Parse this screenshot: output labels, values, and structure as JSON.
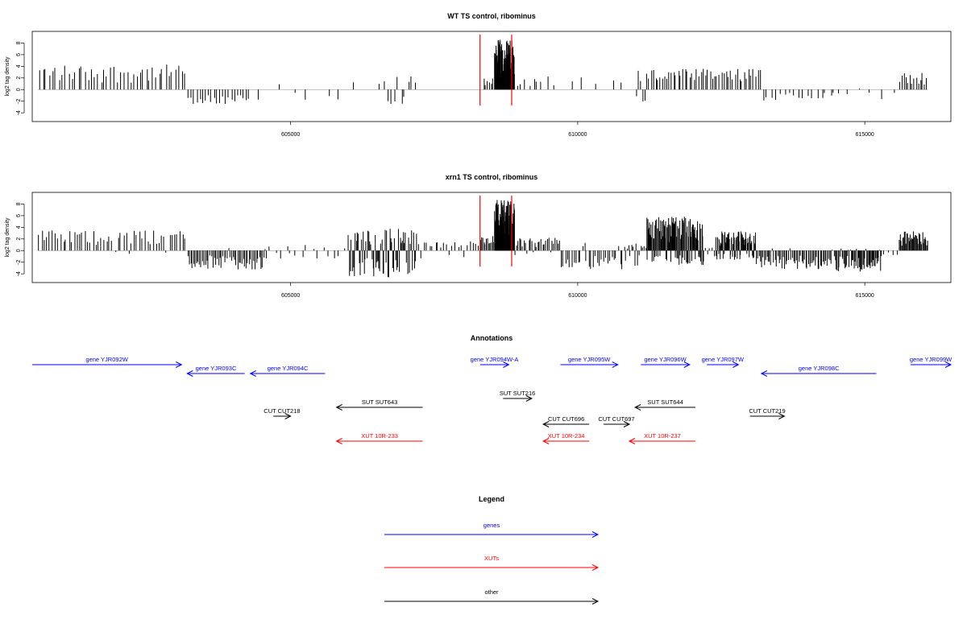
{
  "chart_data": [
    {
      "type": "bar",
      "title": "WT TS control, ribominus",
      "ylabel": "log2 tag density",
      "ylim": [
        -5.5,
        10
      ],
      "yticks": [
        -4,
        -2,
        0,
        2,
        4,
        6,
        8
      ],
      "xlim": [
        600500,
        616500
      ],
      "xticks": [
        605000,
        610000,
        615000
      ],
      "marker_lines": [
        608300,
        608850
      ],
      "marker_color": "#ff0000",
      "segments": [
        {
          "start": 600600,
          "end": 603200,
          "n": 46,
          "pos_max": 4.3,
          "neg_max": 0,
          "neg_frac": 0
        },
        {
          "start": 603200,
          "end": 604300,
          "n": 22,
          "pos_max": 0,
          "neg_max": 2.5,
          "neg_frac": 1
        },
        {
          "start": 604300,
          "end": 606600,
          "n": 8,
          "pos_max": 1.5,
          "neg_max": 1.8,
          "neg_frac": 0.55
        },
        {
          "start": 606600,
          "end": 607200,
          "n": 10,
          "pos_max": 2.6,
          "neg_max": 2.6,
          "neg_frac": 0.6
        },
        {
          "start": 608350,
          "end": 608550,
          "n": 6,
          "pos_max": 2.2,
          "neg_max": 0,
          "neg_frac": 0
        },
        {
          "start": 608550,
          "end": 608900,
          "n": 70,
          "pos_max": 8.6,
          "neg_max": 0,
          "neg_frac": 0
        },
        {
          "start": 608900,
          "end": 609500,
          "n": 8,
          "pos_max": 2.4,
          "neg_max": 0,
          "neg_frac": 0
        },
        {
          "start": 609500,
          "end": 611000,
          "n": 6,
          "pos_max": 2.2,
          "neg_max": 0,
          "neg_frac": 0
        },
        {
          "start": 611000,
          "end": 611300,
          "n": 8,
          "pos_max": 3.6,
          "neg_max": 2.6,
          "neg_frac": 0.4
        },
        {
          "start": 611300,
          "end": 613200,
          "n": 48,
          "pos_max": 3.6,
          "neg_max": 0,
          "neg_frac": 0
        },
        {
          "start": 613200,
          "end": 614600,
          "n": 18,
          "pos_max": 0,
          "neg_max": 2.0,
          "neg_frac": 1
        },
        {
          "start": 614600,
          "end": 615600,
          "n": 5,
          "pos_max": 0.5,
          "neg_max": 1.8,
          "neg_frac": 0.8
        },
        {
          "start": 615600,
          "end": 616100,
          "n": 14,
          "pos_max": 3.0,
          "neg_max": 0,
          "neg_frac": 0
        }
      ]
    },
    {
      "type": "bar",
      "title": "xrn1 TS control, ribominus",
      "ylabel": "log2 tag density",
      "ylim": [
        -5.5,
        10
      ],
      "yticks": [
        -4,
        -2,
        0,
        2,
        4,
        6,
        8
      ],
      "xlim": [
        600500,
        616500
      ],
      "xticks": [
        605000,
        610000,
        615000
      ],
      "marker_lines": [
        608300,
        608850
      ],
      "marker_color": "#ff0000",
      "segments": [
        {
          "start": 600600,
          "end": 603200,
          "n": 55,
          "pos_max": 3.5,
          "neg_max": 0.8,
          "neg_frac": 0.1
        },
        {
          "start": 603200,
          "end": 604600,
          "n": 55,
          "pos_max": 0.5,
          "neg_max": 3.3,
          "neg_frac": 0.95
        },
        {
          "start": 604600,
          "end": 606000,
          "n": 15,
          "pos_max": 1.0,
          "neg_max": 1.4,
          "neg_frac": 0.6
        },
        {
          "start": 606000,
          "end": 607200,
          "n": 70,
          "pos_max": 3.8,
          "neg_max": 4.6,
          "neg_frac": 0.5
        },
        {
          "start": 607200,
          "end": 608300,
          "n": 22,
          "pos_max": 1.6,
          "neg_max": 1.4,
          "neg_frac": 0.35
        },
        {
          "start": 608300,
          "end": 608550,
          "n": 12,
          "pos_max": 2.5,
          "neg_max": 0,
          "neg_frac": 0
        },
        {
          "start": 608550,
          "end": 608900,
          "n": 80,
          "pos_max": 8.8,
          "neg_max": 0,
          "neg_frac": 0
        },
        {
          "start": 608900,
          "end": 609700,
          "n": 30,
          "pos_max": 2.3,
          "neg_max": 0.8,
          "neg_frac": 0.2
        },
        {
          "start": 609700,
          "end": 610800,
          "n": 30,
          "pos_max": 1.5,
          "neg_max": 3.2,
          "neg_frac": 0.8
        },
        {
          "start": 610800,
          "end": 611200,
          "n": 15,
          "pos_max": 1.2,
          "neg_max": 2.8,
          "neg_frac": 0.6
        },
        {
          "start": 611200,
          "end": 612200,
          "n": 110,
          "pos_max": 5.8,
          "neg_max": 2.5,
          "neg_frac": 0.25
        },
        {
          "start": 612200,
          "end": 612400,
          "n": 5,
          "pos_max": 0.5,
          "neg_max": 1.0,
          "neg_frac": 0.5
        },
        {
          "start": 612400,
          "end": 613100,
          "n": 70,
          "pos_max": 3.3,
          "neg_max": 1.6,
          "neg_frac": 0.3
        },
        {
          "start": 613100,
          "end": 614500,
          "n": 60,
          "pos_max": 0.4,
          "neg_max": 3.2,
          "neg_frac": 0.95
        },
        {
          "start": 614500,
          "end": 615300,
          "n": 50,
          "pos_max": 0.4,
          "neg_max": 3.6,
          "neg_frac": 0.95
        },
        {
          "start": 615300,
          "end": 615600,
          "n": 4,
          "pos_max": 0.5,
          "neg_max": 1.0,
          "neg_frac": 0.5
        },
        {
          "start": 615600,
          "end": 616100,
          "n": 35,
          "pos_max": 3.3,
          "neg_max": 0,
          "neg_frac": 0
        }
      ]
    }
  ],
  "annotations": {
    "title": "Annotations",
    "colors": {
      "genes": "#0000ff",
      "XUTs": "#ff0000",
      "other": "#000000"
    },
    "features": [
      {
        "label": "gene YJR092W",
        "kind": "genes",
        "start": 600500,
        "end": 603100,
        "dir": "right",
        "row": 0
      },
      {
        "label": "gene YJR093C",
        "kind": "genes",
        "start": 603200,
        "end": 604200,
        "dir": "left",
        "row": 1
      },
      {
        "label": "gene YJR094C",
        "kind": "genes",
        "start": 604300,
        "end": 605600,
        "dir": "left",
        "row": 1
      },
      {
        "label": "gene YJR094W-A",
        "kind": "genes",
        "start": 608300,
        "end": 608800,
        "dir": "right",
        "row": 0
      },
      {
        "label": "gene YJR095W",
        "kind": "genes",
        "start": 609700,
        "end": 610700,
        "dir": "right",
        "row": 0
      },
      {
        "label": "gene YJR096W",
        "kind": "genes",
        "start": 611100,
        "end": 611950,
        "dir": "right",
        "row": 0
      },
      {
        "label": "gene YJR097W",
        "kind": "genes",
        "start": 612250,
        "end": 612800,
        "dir": "right",
        "row": 0
      },
      {
        "label": "gene YJR098C",
        "kind": "genes",
        "start": 613200,
        "end": 615200,
        "dir": "left",
        "row": 1
      },
      {
        "label": "gene YJR099W",
        "kind": "genes",
        "start": 615800,
        "end": 616500,
        "dir": "right",
        "row": 0
      },
      {
        "label": "SUT SUT643",
        "kind": "other",
        "start": 605800,
        "end": 607300,
        "dir": "left",
        "row": 3
      },
      {
        "label": "SUT SUT216",
        "kind": "other",
        "start": 608700,
        "end": 609200,
        "dir": "right",
        "row": 2
      },
      {
        "label": "SUT SUT644",
        "kind": "other",
        "start": 611000,
        "end": 612050,
        "dir": "left",
        "row": 3
      },
      {
        "label": "CUT CUT218",
        "kind": "other",
        "start": 604700,
        "end": 605000,
        "dir": "right",
        "row": 4
      },
      {
        "label": "CUT CUT219",
        "kind": "other",
        "start": 613000,
        "end": 613600,
        "dir": "right",
        "row": 4
      },
      {
        "label": "CUT CUT696",
        "kind": "other",
        "start": 609400,
        "end": 610200,
        "dir": "left",
        "row": 5
      },
      {
        "label": "CUT CUT697",
        "kind": "other",
        "start": 610450,
        "end": 610900,
        "dir": "right",
        "row": 5
      },
      {
        "label": "XUT 10R-233",
        "kind": "XUTs",
        "start": 605800,
        "end": 607300,
        "dir": "left",
        "row": 6
      },
      {
        "label": "XUT 10R-234",
        "kind": "XUTs",
        "start": 609400,
        "end": 610200,
        "dir": "left",
        "row": 6
      },
      {
        "label": "XUT 10R-237",
        "kind": "XUTs",
        "start": 610900,
        "end": 612050,
        "dir": "left",
        "row": 6
      }
    ]
  },
  "legend": {
    "title": "Legend",
    "items": [
      {
        "label": "genes",
        "color": "#0000ff"
      },
      {
        "label": "XUTs",
        "color": "#ff0000"
      },
      {
        "label": "other",
        "color": "#000000"
      }
    ]
  }
}
